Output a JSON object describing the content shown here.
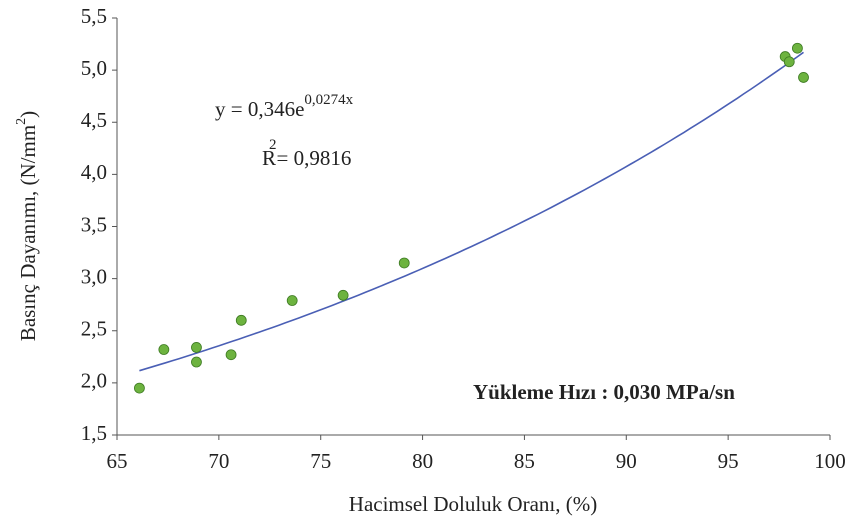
{
  "chart_data": {
    "type": "scatter",
    "x": [
      66.1,
      67.3,
      68.9,
      68.9,
      70.6,
      71.1,
      73.6,
      76.1,
      79.1,
      97.8,
      98.0,
      98.4,
      98.7
    ],
    "values": [
      1.95,
      2.32,
      2.34,
      2.2,
      2.27,
      2.6,
      2.79,
      2.84,
      3.15,
      5.13,
      5.08,
      5.21,
      4.93
    ],
    "color": "#6db33f",
    "xlim": [
      65,
      100
    ],
    "xticks": [
      65,
      70,
      75,
      80,
      85,
      90,
      95,
      100
    ],
    "ylim": [
      1.5,
      5.5
    ],
    "yticks": [
      {
        "value": 1.5,
        "label": "1,5"
      },
      {
        "value": 2.0,
        "label": "2,0"
      },
      {
        "value": 2.5,
        "label": "2,5"
      },
      {
        "value": 3.0,
        "label": "3,0"
      },
      {
        "value": 3.5,
        "label": "3,5"
      },
      {
        "value": 4.0,
        "label": "4,0"
      },
      {
        "value": 4.5,
        "label": "4,5"
      },
      {
        "value": 5.0,
        "label": "5,0"
      },
      {
        "value": 5.5,
        "label": "5,5"
      }
    ],
    "xlabel": "Hacimsel Doluluk Oranı, (%)",
    "ylabel": {
      "text": "Basınç Dayanımı, (N/mm",
      "power": "2",
      "close": ")"
    },
    "trendline": {
      "a": 0.346,
      "b": 0.0274,
      "color": "#4a5fb5"
    },
    "equation": {
      "base": "y = 0,346e",
      "exponent": "0,0274x"
    },
    "r_squared": {
      "symbol": "R",
      "power": "2",
      "text": "= 0,9816"
    },
    "annotation": "Yükleme Hızı : 0,030 MPa/sn"
  }
}
